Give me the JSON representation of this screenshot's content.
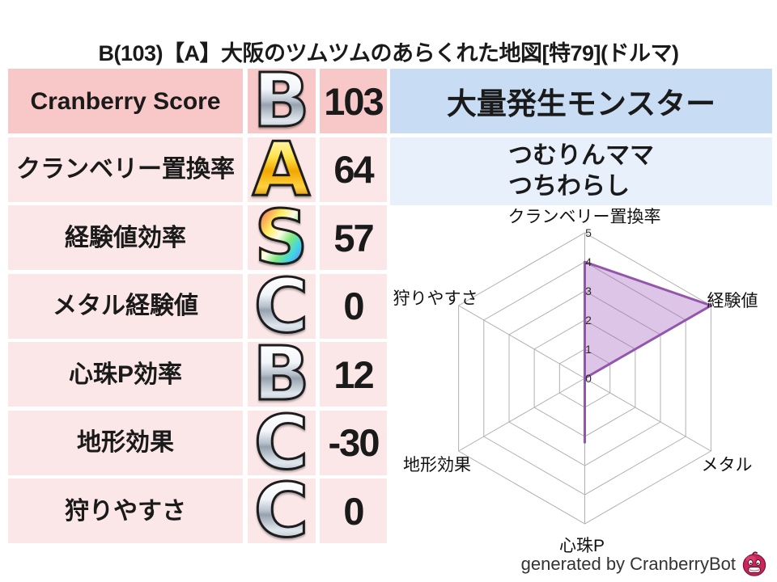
{
  "header": {
    "title": "B(103)【A】大阪のツムツムのあらくれた地図[特79](ドルマ)"
  },
  "table": {
    "rows": [
      {
        "label": "Cranberry Score",
        "grade": "B",
        "grade_style": "silver",
        "value": "103"
      },
      {
        "label": "クランベリー置換率",
        "grade": "A",
        "grade_style": "gold",
        "value": "64"
      },
      {
        "label": "経験値効率",
        "grade": "S",
        "grade_style": "rainbow",
        "value": "57"
      },
      {
        "label": "メタル経験値",
        "grade": "C",
        "grade_style": "silver",
        "value": "0"
      },
      {
        "label": "心珠P効率",
        "grade": "B",
        "grade_style": "silver",
        "value": "12"
      },
      {
        "label": "地形効果",
        "grade": "C",
        "grade_style": "silver",
        "value": "-30"
      },
      {
        "label": "狩りやすさ",
        "grade": "C",
        "grade_style": "silver",
        "value": "0"
      }
    ]
  },
  "monsters": {
    "header": "大量発生モンスター",
    "names": [
      "つむりんママ",
      "つちわらし"
    ]
  },
  "chart_data": {
    "type": "radar",
    "axes": [
      "クランベリー置換率",
      "経験値",
      "メタル",
      "心珠P",
      "地形効果",
      "狩りやすさ"
    ],
    "series": [
      {
        "name": "map-scores",
        "values": [
          4,
          5,
          0,
          2.2,
          0,
          0
        ]
      }
    ],
    "ticks": [
      0,
      1,
      2,
      3,
      4,
      5
    ],
    "axis_max": 5,
    "grid": true,
    "legend": false,
    "colors": {
      "series_stroke": "#9455ad",
      "series_fill": "#9b59b6",
      "grid": "#b0b0b0"
    }
  },
  "footer": {
    "caption": "generated by CranberryBot",
    "icon": "cranberry-bot-icon"
  },
  "colors": {
    "row_header_pink": "#f8c8c8",
    "row_light_pink": "#fbe7e7",
    "monster_header_blue": "#c8dcf3",
    "monster_box_blue": "#e8f1fb"
  }
}
